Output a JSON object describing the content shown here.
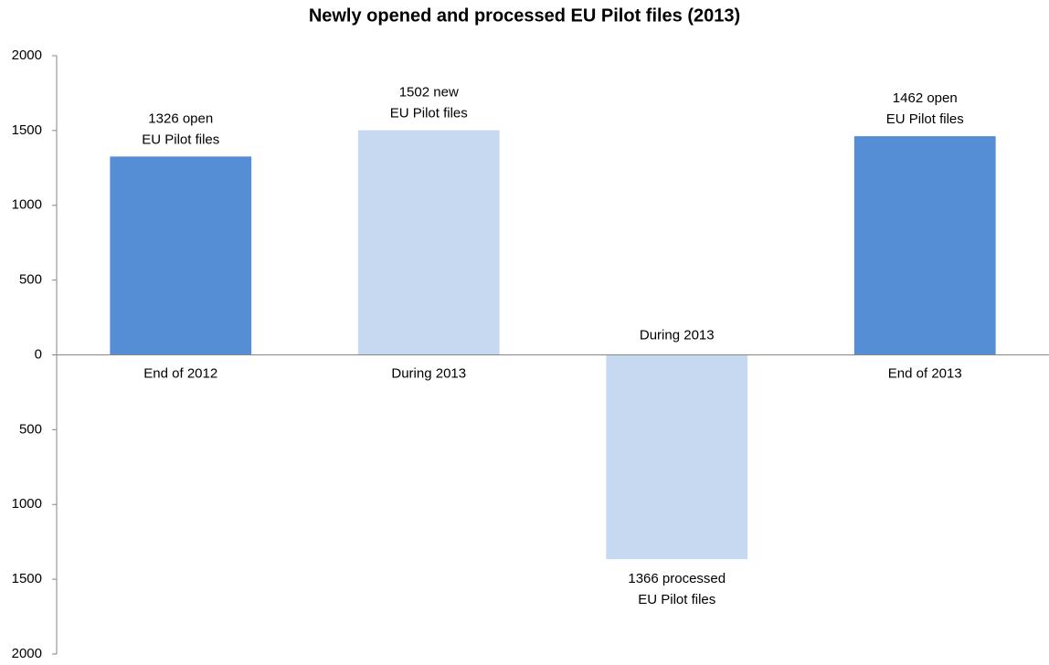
{
  "chart_data": {
    "type": "bar",
    "title": "Newly opened and processed EU Pilot files (2013)",
    "categories": [
      "End of 2012",
      "During 2013",
      "During 2013",
      "End of 2013"
    ],
    "values": [
      1326,
      1502,
      -1366,
      1462
    ],
    "value_labels": [
      [
        "1326 open",
        "EU Pilot files"
      ],
      [
        "1502 new",
        "EU Pilot files"
      ],
      [
        "1366 processed",
        "EU Pilot files"
      ],
      [
        "1462 open",
        "EU Pilot files"
      ]
    ],
    "colors": [
      "#558ed5",
      "#c6d9f1",
      "#c6d9f1",
      "#558ed5"
    ],
    "ylim": [
      -2000,
      2000
    ],
    "yticks": [
      {
        "value": -2000,
        "label": "2000"
      },
      {
        "value": -1500,
        "label": "1500"
      },
      {
        "value": -1000,
        "label": "1000"
      },
      {
        "value": -500,
        "label": "500"
      },
      0,
      500,
      1000,
      1500,
      2000
    ],
    "grid": false
  }
}
